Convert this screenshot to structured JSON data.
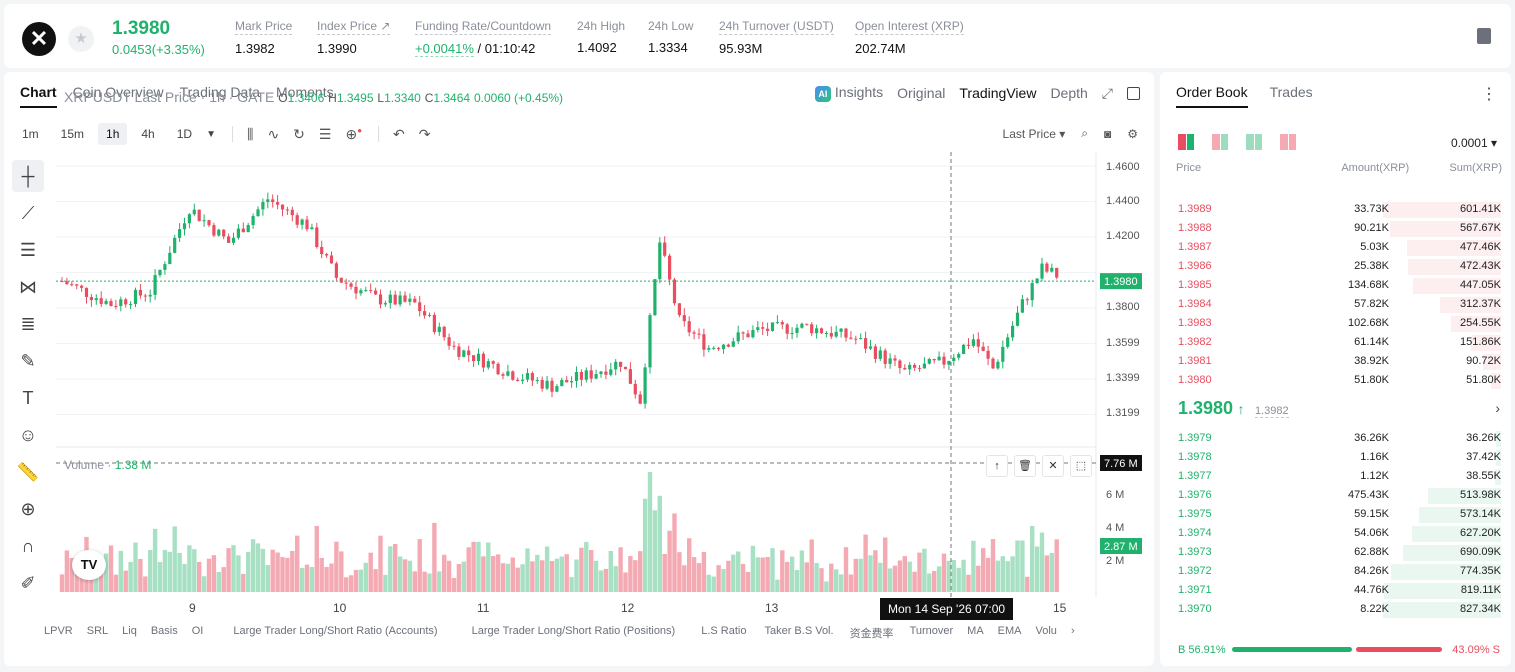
{
  "ticker": {
    "symbol_glyph": "✕",
    "last_price": "1.3980",
    "change": "0.0453(+3.35%)",
    "stats": [
      {
        "label": "Mark Price",
        "value": "1.3982"
      },
      {
        "label": "Index Price ↗",
        "value": "1.3990"
      },
      {
        "label": "Funding Rate/Countdown",
        "value": "+0.0041%",
        "value2": " / 01:10:42"
      },
      {
        "label": "24h High",
        "value": "1.4092"
      },
      {
        "label": "24h Low",
        "value": "1.3334"
      },
      {
        "label": "24h Turnover (USDT)",
        "value": "95.93M"
      },
      {
        "label": "Open Interest (XRP)",
        "value": "202.74M"
      }
    ]
  },
  "chart_tabs": [
    "Chart",
    "Coin Overview",
    "Trading Data",
    "Moments"
  ],
  "view_tabs": {
    "insights": "Insights",
    "original": "Original",
    "tradingview": "TradingView",
    "depth": "Depth"
  },
  "intervals": [
    "1m",
    "15m",
    "1h",
    "4h",
    "1D"
  ],
  "price_type": "Last Price ▾",
  "legend": {
    "title": "XRPUSDT Last Price · 1h · GATE",
    "o_label": "O",
    "o": "1.3406",
    "h_label": "H",
    "h": "1.3495",
    "l_label": "L",
    "l": "1.3340",
    "c_label": "C",
    "c": "1.3464",
    "chg": "0.0060 (+0.45%)"
  },
  "volume_legend": {
    "label": "Volume ·",
    "value": "1.38 M"
  },
  "crosshair_time": "Mon 14 Sep '26   07:00",
  "price_axis": [
    "1.4600",
    "1.4400",
    "1.4200",
    "1.3980",
    "1.3800",
    "1.3599",
    "1.3399",
    "1.3199"
  ],
  "current_price_tag": "1.3980",
  "volume_axis": [
    "7.76 M",
    "6 M",
    "4 M",
    "2.87 M",
    "2 M"
  ],
  "time_axis": [
    "9",
    "10",
    "11",
    "12",
    "13",
    "15"
  ],
  "bottom_indicators": [
    "LPVR",
    "SRL",
    "Liq",
    "Basis",
    "OI",
    "Large Trader Long/Short Ratio (Accounts)",
    "Large Trader Long/Short Ratio (Positions)",
    "L.S Ratio",
    "Taker B.S Vol.",
    "资金费率",
    "Turnover",
    "MA",
    "EMA",
    "Volu"
  ],
  "orderbook": {
    "tabs": [
      "Order Book",
      "Trades"
    ],
    "precision": "0.0001 ▾",
    "headers": [
      "Price",
      "Amount(XRP)",
      "Sum(XRP)"
    ],
    "asks": [
      {
        "price": "1.3989",
        "amount": "33.73K",
        "sum": "601.41K",
        "depth": 1.0
      },
      {
        "price": "1.3988",
        "amount": "90.21K",
        "sum": "567.67K",
        "depth": 0.944
      },
      {
        "price": "1.3987",
        "amount": "5.03K",
        "sum": "477.46K",
        "depth": 0.794
      },
      {
        "price": "1.3986",
        "amount": "25.38K",
        "sum": "472.43K",
        "depth": 0.786
      },
      {
        "price": "1.3985",
        "amount": "134.68K",
        "sum": "447.05K",
        "depth": 0.743
      },
      {
        "price": "1.3984",
        "amount": "57.82K",
        "sum": "312.37K",
        "depth": 0.519
      },
      {
        "price": "1.3983",
        "amount": "102.68K",
        "sum": "254.55K",
        "depth": 0.423
      },
      {
        "price": "1.3982",
        "amount": "61.14K",
        "sum": "151.86K",
        "depth": 0.252
      },
      {
        "price": "1.3981",
        "amount": "38.92K",
        "sum": "90.72K",
        "depth": 0.151
      },
      {
        "price": "1.3980",
        "amount": "51.80K",
        "sum": "51.80K",
        "depth": 0.086
      }
    ],
    "mid": {
      "price": "1.3980",
      "arrow": "↑",
      "mark": "1.3982"
    },
    "bids": [
      {
        "price": "1.3979",
        "amount": "36.26K",
        "sum": "36.26K",
        "depth": 0.044
      },
      {
        "price": "1.3978",
        "amount": "1.16K",
        "sum": "37.42K",
        "depth": 0.045
      },
      {
        "price": "1.3977",
        "amount": "1.12K",
        "sum": "38.55K",
        "depth": 0.047
      },
      {
        "price": "1.3976",
        "amount": "475.43K",
        "sum": "513.98K",
        "depth": 0.621
      },
      {
        "price": "1.3975",
        "amount": "59.15K",
        "sum": "573.14K",
        "depth": 0.693
      },
      {
        "price": "1.3974",
        "amount": "54.06K",
        "sum": "627.20K",
        "depth": 0.758
      },
      {
        "price": "1.3973",
        "amount": "62.88K",
        "sum": "690.09K",
        "depth": 0.834
      },
      {
        "price": "1.3972",
        "amount": "84.26K",
        "sum": "774.35K",
        "depth": 0.936
      },
      {
        "price": "1.3971",
        "amount": "44.76K",
        "sum": "819.11K",
        "depth": 0.99
      },
      {
        "price": "1.3970",
        "amount": "8.22K",
        "sum": "827.34K",
        "depth": 1.0
      }
    ],
    "ratio": {
      "buy": "B 56.91%",
      "sell": "43.09% S",
      "buy_fraction": 0.5691
    }
  },
  "colors": {
    "up": "#20b26c",
    "down": "#e84e5f",
    "up_light": "#e9f7f0",
    "down_light": "#fdeef0"
  }
}
